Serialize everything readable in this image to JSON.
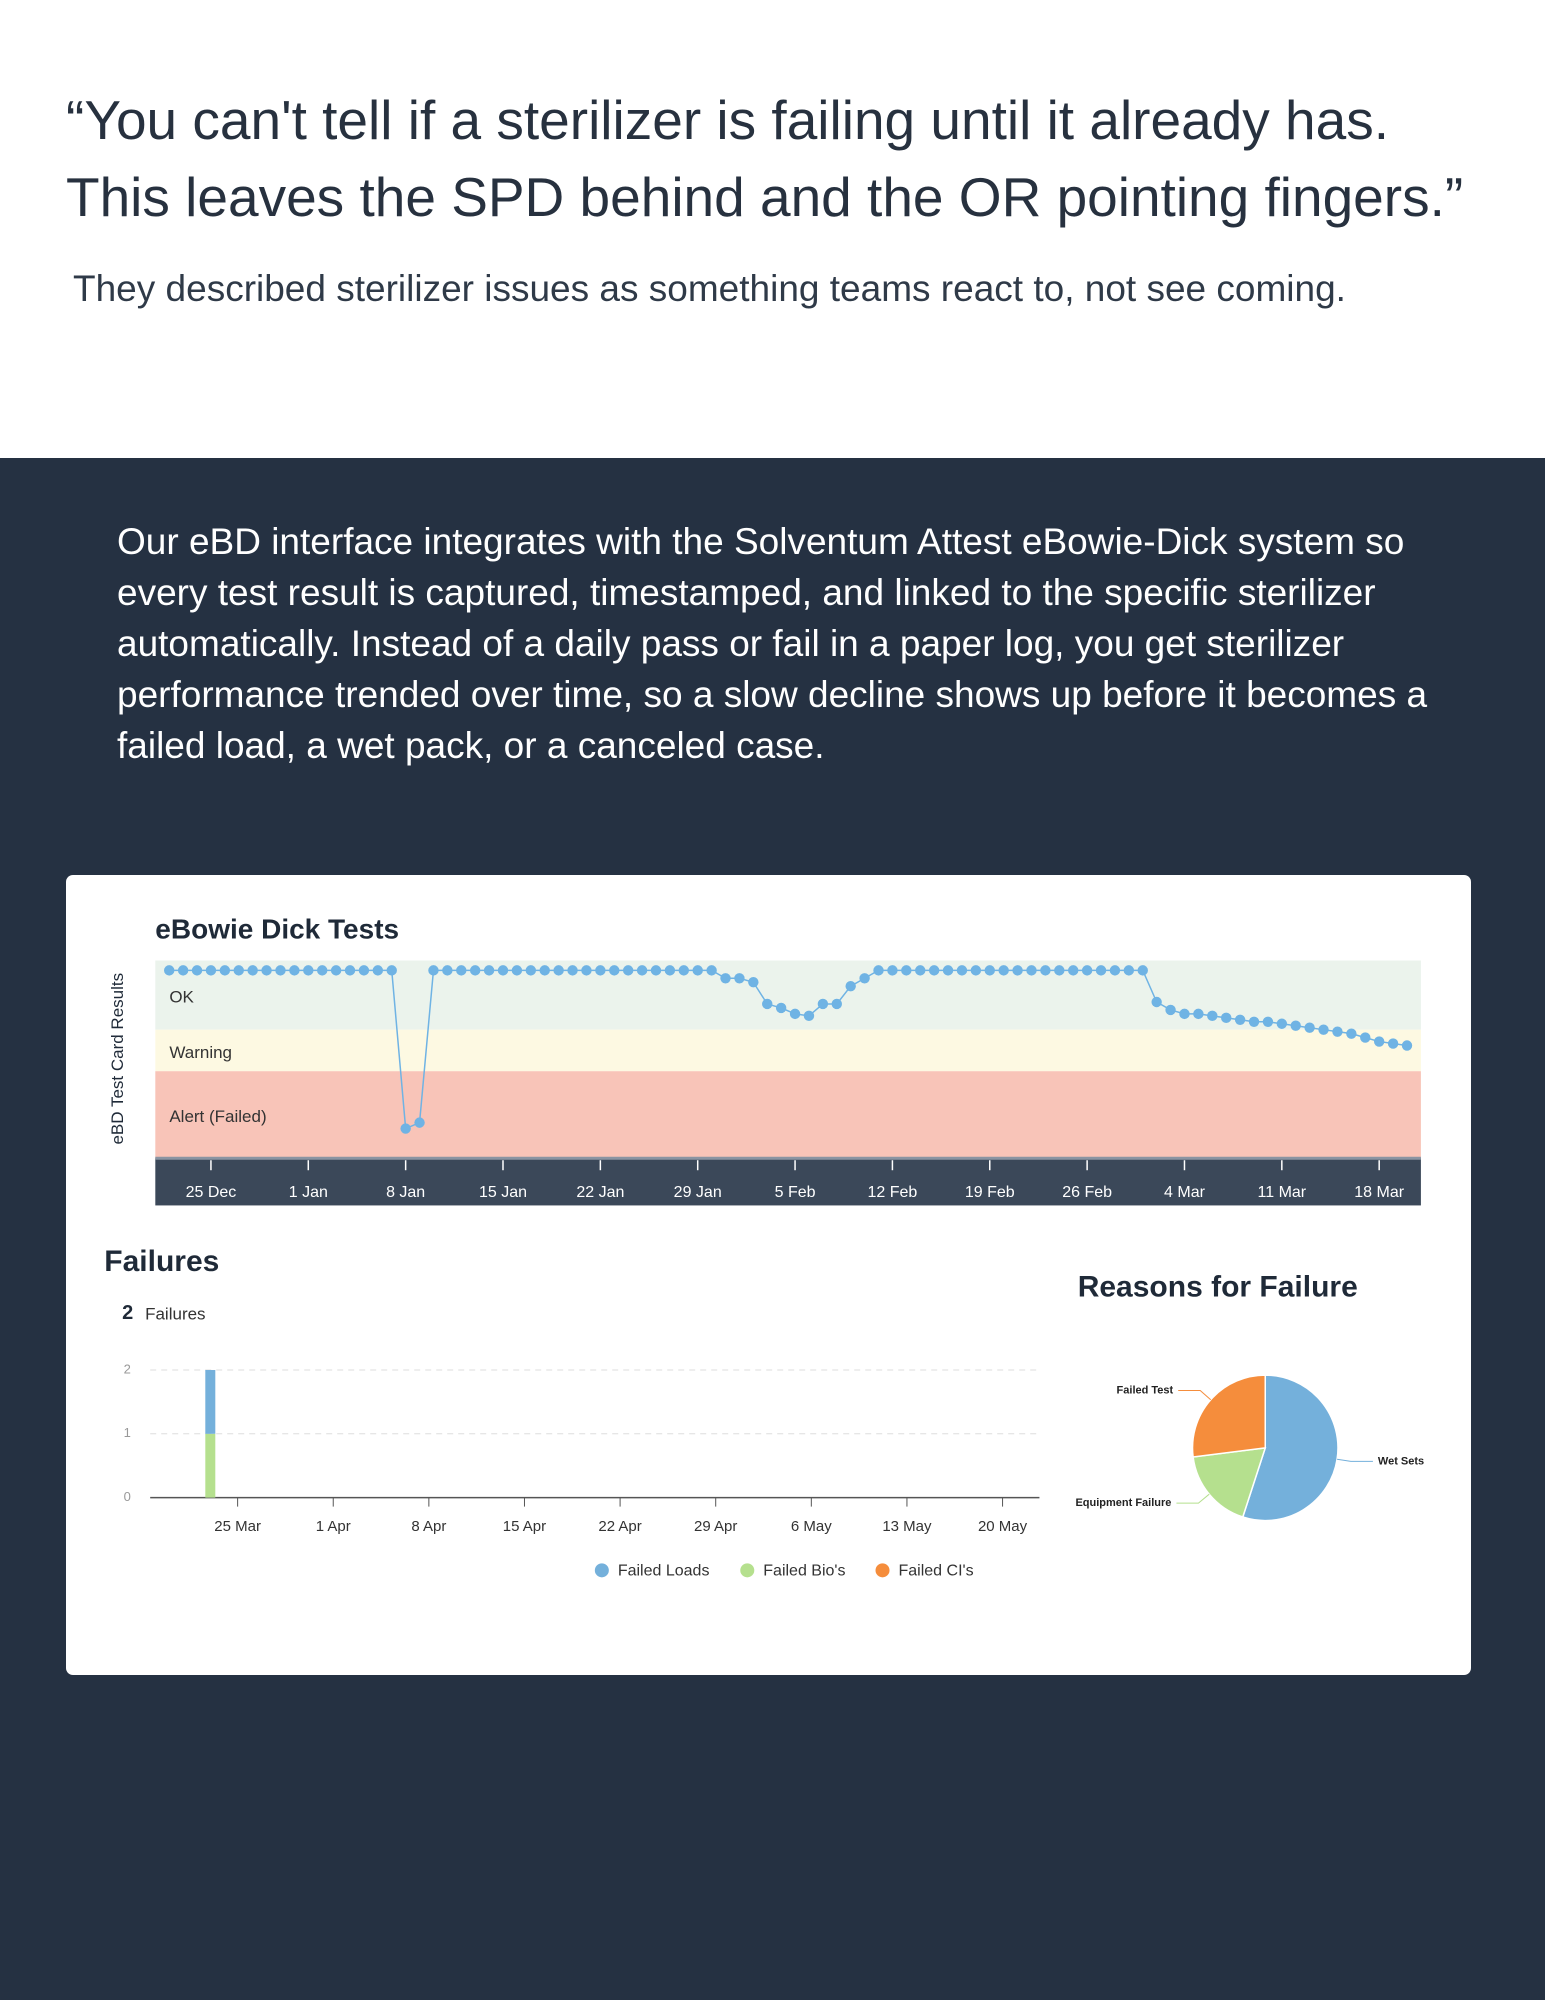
{
  "header": {
    "quote": [
      "“You can't tell if a sterilizer is failing until it already has.",
      "This leaves the SPD behind and the OR pointing fingers.”"
    ],
    "subtitle": "They described sterilizer issues as something teams react to, not see coming."
  },
  "body": {
    "paragraph": "Our eBD interface integrates with the Solventum Attest eBowie-Dick system so every test result is captured, timestamped, and linked to the specific sterilizer automatically. Instead of a daily pass or fail in a paper log, you get sterilizer performance trended over time, so a slow decline shows up before it becomes a failed load, a wet pack, or a canceled case."
  },
  "chart_data": [
    {
      "type": "line",
      "title": "eBowie Dick Tests",
      "ylabel": "eBD Test Card Results",
      "color": "#6fb3e4",
      "x": [
        -3,
        -2,
        -1,
        0,
        1,
        2,
        3,
        4,
        5,
        6,
        7,
        8,
        9,
        10,
        11,
        12,
        13,
        14,
        15,
        16,
        17,
        18,
        19,
        20,
        21,
        22,
        23,
        24,
        25,
        26,
        27,
        28,
        29,
        30,
        31,
        32,
        33,
        34,
        35,
        36,
        37,
        38,
        39,
        40,
        41,
        42,
        43,
        44,
        45,
        46,
        47,
        48,
        49,
        50,
        51,
        52,
        53,
        54,
        55,
        56,
        57,
        58,
        59,
        60,
        61,
        62,
        63,
        64,
        65,
        66,
        67,
        68,
        69,
        70,
        71,
        72,
        73,
        74,
        75,
        76,
        77,
        78,
        79,
        80,
        81,
        82,
        83,
        84,
        85,
        86
      ],
      "values": [
        9.5,
        9.5,
        9.5,
        9.5,
        9.5,
        9.5,
        9.5,
        9.5,
        9.5,
        9.5,
        9.5,
        9.5,
        9.5,
        9.5,
        9.5,
        9.5,
        9.5,
        1.5,
        1.8,
        9.5,
        9.5,
        9.5,
        9.5,
        9.5,
        9.5,
        9.5,
        9.5,
        9.5,
        9.5,
        9.5,
        9.5,
        9.5,
        9.5,
        9.5,
        9.5,
        9.5,
        9.5,
        9.5,
        9.5,
        9.5,
        9.1,
        9.1,
        8.9,
        7.8,
        7.6,
        7.3,
        7.2,
        7.8,
        7.8,
        8.7,
        9.1,
        9.5,
        9.5,
        9.5,
        9.5,
        9.5,
        9.5,
        9.5,
        9.5,
        9.5,
        9.5,
        9.5,
        9.5,
        9.5,
        9.5,
        9.5,
        9.5,
        9.5,
        9.5,
        9.5,
        9.5,
        7.9,
        7.5,
        7.3,
        7.3,
        7.2,
        7.1,
        7.0,
        6.9,
        6.9,
        6.8,
        6.7,
        6.6,
        6.5,
        6.4,
        6.3,
        6.1,
        5.9,
        5.8,
        5.7
      ],
      "xlim": [
        -4,
        87
      ],
      "xticks": [
        {
          "value": 0,
          "label": "25 Dec"
        },
        {
          "value": 7,
          "label": "1 Jan"
        },
        {
          "value": 14,
          "label": "8 Jan"
        },
        {
          "value": 21,
          "label": "15 Jan"
        },
        {
          "value": 28,
          "label": "22 Jan"
        },
        {
          "value": 35,
          "label": "29 Jan"
        },
        {
          "value": 42,
          "label": "5 Feb"
        },
        {
          "value": 49,
          "label": "12 Feb"
        },
        {
          "value": 56,
          "label": "19 Feb"
        },
        {
          "value": 63,
          "label": "26 Feb"
        },
        {
          "value": 70,
          "label": "4 Mar"
        },
        {
          "value": 77,
          "label": "11 Mar"
        },
        {
          "value": 84,
          "label": "18 Mar"
        }
      ],
      "ylim": [
        0,
        10
      ],
      "bands": [
        {
          "label": "OK",
          "from": 6.5,
          "to": 10,
          "color": "#ebf3ec"
        },
        {
          "label": "Warning",
          "from": 4.4,
          "to": 6.5,
          "color": "#fdf9e2"
        },
        {
          "label": "Alert (Failed)",
          "from": 0,
          "to": 4.4,
          "color": "#f8c4b8"
        }
      ]
    },
    {
      "type": "bar",
      "title": "Failures",
      "total": 2,
      "total_label": "Failures",
      "x": [
        -2
      ],
      "series": [
        {
          "name": "Failed Loads",
          "color": "#74b0db",
          "values": [
            1
          ]
        },
        {
          "name": "Failed Bio's",
          "color": "#b5e08e",
          "values": [
            1
          ]
        },
        {
          "name": "Failed CI's",
          "color": "#f58d3c",
          "values": [
            0
          ]
        }
      ],
      "xlim": [
        -6.4,
        58.7
      ],
      "xticks": [
        {
          "value": 0,
          "label": "25 Mar"
        },
        {
          "value": 7,
          "label": "1 Apr"
        },
        {
          "value": 14,
          "label": "8 Apr"
        },
        {
          "value": 21,
          "label": "15 Apr"
        },
        {
          "value": 28,
          "label": "22 Apr"
        },
        {
          "value": 35,
          "label": "29 Apr"
        },
        {
          "value": 42,
          "label": "6 May"
        },
        {
          "value": 49,
          "label": "13 May"
        },
        {
          "value": 56,
          "label": "20 May"
        }
      ],
      "ylim": [
        0,
        2
      ],
      "yticks": [
        0,
        1,
        2
      ],
      "grid": true
    },
    {
      "type": "pie",
      "title": "Reasons for Failure",
      "categories": [
        "Wet Sets",
        "Equipment Failure",
        "Failed Test"
      ],
      "values": [
        55,
        18,
        27
      ],
      "colors": [
        "#74b0db",
        "#b5e08e",
        "#f58d3c"
      ]
    }
  ]
}
